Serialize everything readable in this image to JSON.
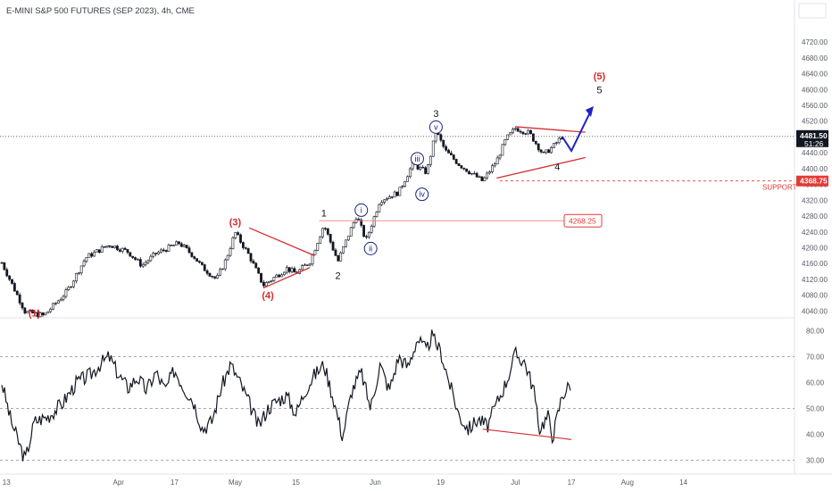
{
  "header": {
    "title": "E-MINI S&P 500 FUTURES (SEP 2023), 4h, CME"
  },
  "colors": {
    "bull": "#131722",
    "wave_red": "#d32f2f",
    "wave_blue": "#1a237e",
    "arrow_blue": "#1e22c8",
    "last_price": "#131722",
    "support": "#e53935",
    "grid": "#8d8d8d"
  },
  "chart_data": [
    {
      "type": "candlestick",
      "title": "E-MINI S&P 500 FUTURES (SEP 2023), 4h, CME",
      "ylim": [
        4025,
        4770
      ],
      "y_ticks": [
        4040,
        4080,
        4120,
        4160,
        4200,
        4240,
        4280,
        4320,
        4360,
        4400,
        4440,
        4480,
        4520,
        4560,
        4600,
        4640,
        4680,
        4720
      ],
      "x_ticks": [
        "13",
        "Apr",
        "17",
        "May",
        "15",
        "Jun",
        "19",
        "Jul",
        "17",
        "Aug",
        "14"
      ],
      "price_path": [
        {
          "day": 0,
          "price": 4162
        },
        {
          "day": 5,
          "price": 4038
        },
        {
          "day": 9,
          "price": 4028
        },
        {
          "day": 14,
          "price": 4090
        },
        {
          "day": 18,
          "price": 4175
        },
        {
          "day": 23,
          "price": 4208
        },
        {
          "day": 27,
          "price": 4190
        },
        {
          "day": 30,
          "price": 4155
        },
        {
          "day": 33,
          "price": 4185
        },
        {
          "day": 38,
          "price": 4212
        },
        {
          "day": 41,
          "price": 4180
        },
        {
          "day": 43,
          "price": 4150
        },
        {
          "day": 46,
          "price": 4120
        },
        {
          "day": 48,
          "price": 4170
        },
        {
          "day": 50,
          "price": 4238
        },
        {
          "day": 53,
          "price": 4180
        },
        {
          "day": 56,
          "price": 4105
        },
        {
          "day": 59,
          "price": 4130
        },
        {
          "day": 61,
          "price": 4148
        },
        {
          "day": 63,
          "price": 4135
        },
        {
          "day": 66,
          "price": 4165
        },
        {
          "day": 69,
          "price": 4258
        },
        {
          "day": 72,
          "price": 4165
        },
        {
          "day": 74,
          "price": 4225
        },
        {
          "day": 76,
          "price": 4282
        },
        {
          "day": 78,
          "price": 4218
        },
        {
          "day": 81,
          "price": 4320
        },
        {
          "day": 85,
          "price": 4340
        },
        {
          "day": 88,
          "price": 4412
        },
        {
          "day": 91,
          "price": 4390
        },
        {
          "day": 93,
          "price": 4495
        },
        {
          "day": 95,
          "price": 4445
        },
        {
          "day": 98,
          "price": 4410
        },
        {
          "day": 101,
          "price": 4385
        },
        {
          "day": 103,
          "price": 4368
        },
        {
          "day": 106,
          "price": 4420
        },
        {
          "day": 108,
          "price": 4475
        },
        {
          "day": 110,
          "price": 4502
        },
        {
          "day": 113,
          "price": 4490
        },
        {
          "day": 116,
          "price": 4435
        },
        {
          "day": 118,
          "price": 4455
        },
        {
          "day": 120,
          "price": 4481.5
        }
      ],
      "last_price": {
        "value": "4481.50",
        "countdown": "51:26"
      },
      "support": {
        "value": "4368.75",
        "label": "SUPPORT"
      },
      "resistance_box": {
        "value": "4268.25"
      },
      "projection": [
        {
          "day": 120,
          "price": 4481.5
        },
        {
          "day": 122,
          "price": 4445
        },
        {
          "day": 126,
          "price": 4542
        }
      ],
      "wave_labels": [
        {
          "text": "(1)",
          "day": 7,
          "price": 4035,
          "color": "red"
        },
        {
          "text": "(3)",
          "day": 50,
          "price": 4265,
          "color": "red"
        },
        {
          "text": "(4)",
          "day": 57,
          "price": 4080,
          "color": "red"
        },
        {
          "text": "1",
          "day": 69,
          "price": 4288,
          "color": "black"
        },
        {
          "text": "2",
          "day": 72,
          "price": 4130,
          "color": "black"
        },
        {
          "text": "3",
          "day": 93,
          "price": 4540,
          "color": "black"
        },
        {
          "text": "4",
          "day": 119,
          "price": 4405,
          "color": "black"
        },
        {
          "text": "(5)",
          "day": 128,
          "price": 4635,
          "color": "red"
        },
        {
          "text": "5",
          "day": 128,
          "price": 4600,
          "color": "black"
        },
        {
          "text": "i",
          "day": 77,
          "price": 4295,
          "color": "blue-circle"
        },
        {
          "text": "ii",
          "day": 79,
          "price": 4198,
          "color": "blue-circle"
        },
        {
          "text": "iii",
          "day": 89,
          "price": 4425,
          "color": "blue-circle"
        },
        {
          "text": "iv",
          "day": 90,
          "price": 4335,
          "color": "blue-circle"
        },
        {
          "text": "v",
          "day": 93,
          "price": 4505,
          "color": "blue-circle"
        }
      ]
    },
    {
      "type": "line",
      "title": "",
      "ylim": [
        25,
        85
      ],
      "y_ticks": [
        30,
        40,
        50,
        60,
        70,
        80
      ],
      "dashed_levels": [
        70,
        50,
        30
      ],
      "series": [
        {
          "points": [
            {
              "day": 0,
              "value": 60
            },
            {
              "day": 2,
              "value": 45
            },
            {
              "day": 5,
              "value": 30
            },
            {
              "day": 7,
              "value": 45
            },
            {
              "day": 10,
              "value": 47
            },
            {
              "day": 13,
              "value": 52
            },
            {
              "day": 16,
              "value": 60
            },
            {
              "day": 19,
              "value": 63
            },
            {
              "day": 21,
              "value": 67
            },
            {
              "day": 23,
              "value": 70
            },
            {
              "day": 25,
              "value": 63
            },
            {
              "day": 27,
              "value": 58
            },
            {
              "day": 29,
              "value": 62
            },
            {
              "day": 31,
              "value": 57
            },
            {
              "day": 33,
              "value": 64
            },
            {
              "day": 35,
              "value": 57
            },
            {
              "day": 37,
              "value": 65
            },
            {
              "day": 39,
              "value": 58
            },
            {
              "day": 41,
              "value": 53
            },
            {
              "day": 43,
              "value": 42
            },
            {
              "day": 45,
              "value": 45
            },
            {
              "day": 47,
              "value": 58
            },
            {
              "day": 49,
              "value": 67
            },
            {
              "day": 51,
              "value": 60
            },
            {
              "day": 53,
              "value": 52
            },
            {
              "day": 55,
              "value": 43
            },
            {
              "day": 57,
              "value": 50
            },
            {
              "day": 59,
              "value": 53
            },
            {
              "day": 61,
              "value": 55
            },
            {
              "day": 63,
              "value": 48
            },
            {
              "day": 65,
              "value": 57
            },
            {
              "day": 67,
              "value": 63
            },
            {
              "day": 69,
              "value": 67
            },
            {
              "day": 71,
              "value": 54
            },
            {
              "day": 73,
              "value": 39
            },
            {
              "day": 75,
              "value": 57
            },
            {
              "day": 77,
              "value": 64
            },
            {
              "day": 79,
              "value": 50
            },
            {
              "day": 81,
              "value": 67
            },
            {
              "day": 83,
              "value": 57
            },
            {
              "day": 85,
              "value": 70
            },
            {
              "day": 87,
              "value": 66
            },
            {
              "day": 89,
              "value": 77
            },
            {
              "day": 91,
              "value": 72
            },
            {
              "day": 92,
              "value": 78
            },
            {
              "day": 94,
              "value": 72
            },
            {
              "day": 96,
              "value": 59
            },
            {
              "day": 98,
              "value": 47
            },
            {
              "day": 100,
              "value": 42
            },
            {
              "day": 102,
              "value": 46
            },
            {
              "day": 104,
              "value": 43
            },
            {
              "day": 106,
              "value": 52
            },
            {
              "day": 108,
              "value": 60
            },
            {
              "day": 110,
              "value": 71
            },
            {
              "day": 112,
              "value": 68
            },
            {
              "day": 114,
              "value": 57
            },
            {
              "day": 115,
              "value": 42
            },
            {
              "day": 117,
              "value": 47
            },
            {
              "day": 118,
              "value": 39
            },
            {
              "day": 120,
              "value": 55
            },
            {
              "day": 122,
              "value": 60
            }
          ]
        }
      ],
      "divergence_line": [
        {
          "day": 103,
          "value": 42
        },
        {
          "day": 122,
          "value": 38
        }
      ]
    }
  ]
}
